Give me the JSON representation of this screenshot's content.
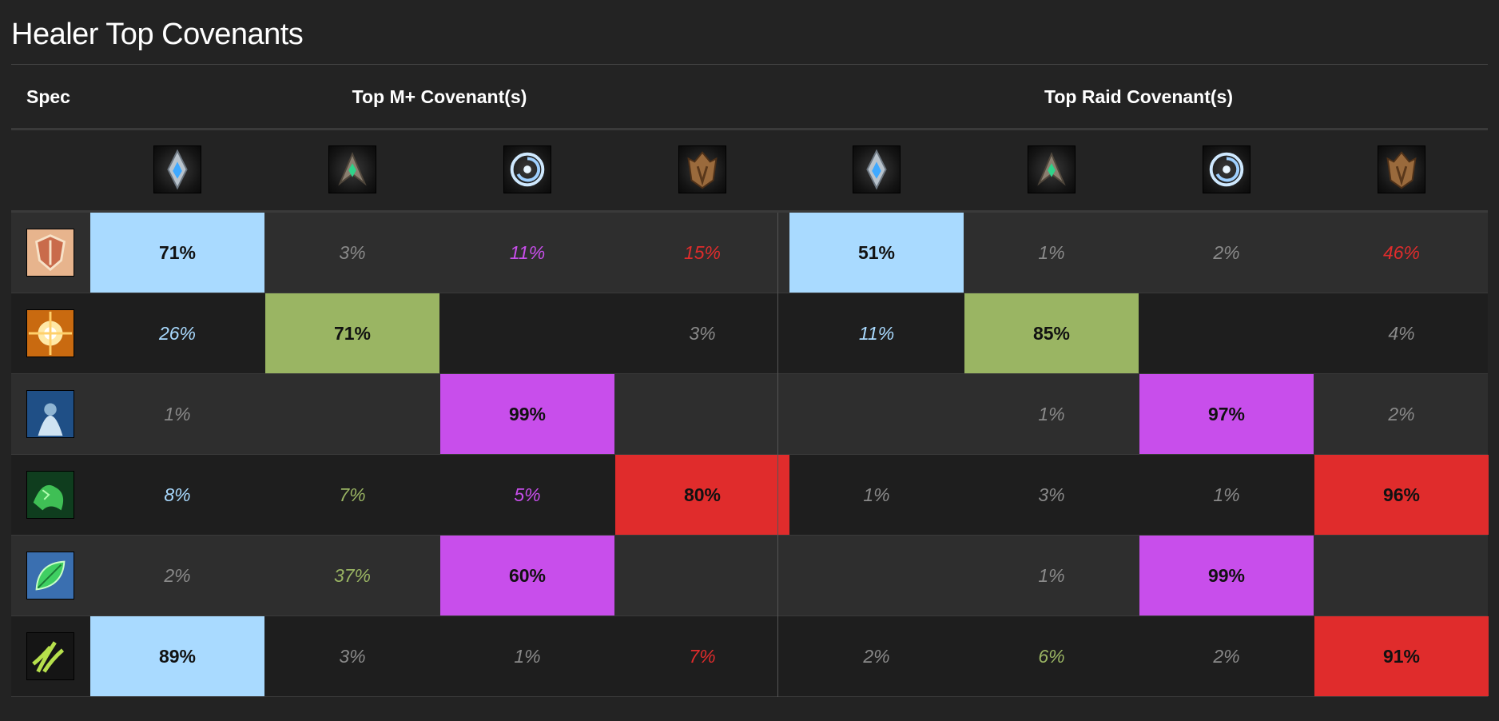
{
  "page": {
    "title": "Healer Top Covenants"
  },
  "colors": {
    "kyrian": "#a9daff",
    "necrolord": "#9ab563",
    "nightfae": "#c84eeb",
    "venthyr": "#e02c2c",
    "muted": "#8a8a8a",
    "highlight_text": "#111111"
  },
  "header": {
    "spec_label": "Spec",
    "mplus_label": "Top M+ Covenant(s)",
    "raid_label": "Top Raid Covenant(s)"
  },
  "covenant_icons": [
    "kyrian-icon",
    "necrolord-icon",
    "nightfae-icon",
    "venthyr-icon",
    "kyrian-icon",
    "necrolord-icon",
    "nightfae-icon",
    "venthyr-icon"
  ],
  "rows": [
    {
      "spec_icon": "holy-paladin-icon",
      "cells": [
        {
          "text": "71%",
          "cov": "kyrian",
          "hl": true
        },
        {
          "text": "3%",
          "cov": "muted",
          "hl": false
        },
        {
          "text": "11%",
          "cov": "nightfae",
          "hl": false
        },
        {
          "text": "15%",
          "cov": "venthyr",
          "hl": false
        },
        {
          "text": "51%",
          "cov": "kyrian",
          "hl": true
        },
        {
          "text": "1%",
          "cov": "muted",
          "hl": false
        },
        {
          "text": "2%",
          "cov": "muted",
          "hl": false
        },
        {
          "text": "46%",
          "cov": "venthyr",
          "hl": false
        }
      ]
    },
    {
      "spec_icon": "holy-priest-icon",
      "cells": [
        {
          "text": "26%",
          "cov": "kyrian",
          "hl": false
        },
        {
          "text": "71%",
          "cov": "necrolord",
          "hl": true
        },
        {
          "text": "",
          "cov": "muted",
          "hl": false
        },
        {
          "text": "3%",
          "cov": "muted",
          "hl": false
        },
        {
          "text": "11%",
          "cov": "kyrian",
          "hl": false
        },
        {
          "text": "85%",
          "cov": "necrolord",
          "hl": true
        },
        {
          "text": "",
          "cov": "muted",
          "hl": false
        },
        {
          "text": "4%",
          "cov": "muted",
          "hl": false
        }
      ]
    },
    {
      "spec_icon": "discipline-priest-icon",
      "cells": [
        {
          "text": "1%",
          "cov": "muted",
          "hl": false
        },
        {
          "text": "",
          "cov": "muted",
          "hl": false
        },
        {
          "text": "99%",
          "cov": "nightfae",
          "hl": true
        },
        {
          "text": "",
          "cov": "muted",
          "hl": false
        },
        {
          "text": "",
          "cov": "muted",
          "hl": false
        },
        {
          "text": "1%",
          "cov": "muted",
          "hl": false
        },
        {
          "text": "97%",
          "cov": "nightfae",
          "hl": true
        },
        {
          "text": "2%",
          "cov": "muted",
          "hl": false
        }
      ]
    },
    {
      "spec_icon": "mistweaver-monk-icon",
      "cells": [
        {
          "text": "8%",
          "cov": "kyrian",
          "hl": false
        },
        {
          "text": "7%",
          "cov": "necrolord",
          "hl": false
        },
        {
          "text": "5%",
          "cov": "nightfae",
          "hl": false
        },
        {
          "text": "80%",
          "cov": "venthyr",
          "hl": true
        },
        {
          "text": "1%",
          "cov": "muted",
          "hl": false
        },
        {
          "text": "3%",
          "cov": "muted",
          "hl": false
        },
        {
          "text": "1%",
          "cov": "muted",
          "hl": false
        },
        {
          "text": "96%",
          "cov": "venthyr",
          "hl": true
        }
      ]
    },
    {
      "spec_icon": "restoration-druid-icon",
      "cells": [
        {
          "text": "2%",
          "cov": "muted",
          "hl": false
        },
        {
          "text": "37%",
          "cov": "necrolord",
          "hl": false
        },
        {
          "text": "60%",
          "cov": "nightfae",
          "hl": true
        },
        {
          "text": "",
          "cov": "muted",
          "hl": false
        },
        {
          "text": "",
          "cov": "muted",
          "hl": false
        },
        {
          "text": "1%",
          "cov": "muted",
          "hl": false
        },
        {
          "text": "99%",
          "cov": "nightfae",
          "hl": true
        },
        {
          "text": "",
          "cov": "muted",
          "hl": false
        }
      ]
    },
    {
      "spec_icon": "restoration-shaman-icon",
      "cells": [
        {
          "text": "89%",
          "cov": "kyrian",
          "hl": true
        },
        {
          "text": "3%",
          "cov": "muted",
          "hl": false
        },
        {
          "text": "1%",
          "cov": "muted",
          "hl": false
        },
        {
          "text": "7%",
          "cov": "venthyr",
          "hl": false
        },
        {
          "text": "2%",
          "cov": "muted",
          "hl": false
        },
        {
          "text": "6%",
          "cov": "necrolord",
          "hl": false
        },
        {
          "text": "2%",
          "cov": "muted",
          "hl": false
        },
        {
          "text": "91%",
          "cov": "venthyr",
          "hl": true
        }
      ]
    }
  ]
}
